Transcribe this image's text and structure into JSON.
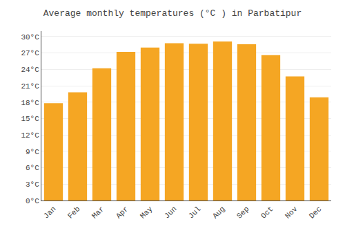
{
  "chart_data": {
    "type": "bar",
    "title": "Average monthly temperatures (°C ) in Parbatipur",
    "categories": [
      "Jan",
      "Feb",
      "Mar",
      "Apr",
      "May",
      "Jun",
      "Jul",
      "Aug",
      "Sep",
      "Oct",
      "Nov",
      "Dec"
    ],
    "values": [
      17.8,
      19.8,
      24.2,
      27.2,
      28.0,
      28.8,
      28.7,
      29.1,
      28.6,
      26.6,
      22.7,
      18.9
    ],
    "color": "#F5A623",
    "ylim": [
      0,
      31
    ],
    "yticks": [
      {
        "value": 0,
        "label": "0°C"
      },
      {
        "value": 3,
        "label": "3°C"
      },
      {
        "value": 6,
        "label": "6°C"
      },
      {
        "value": 9,
        "label": "9°C"
      },
      {
        "value": 12,
        "label": "12°C"
      },
      {
        "value": 15,
        "label": "15°C"
      },
      {
        "value": 18,
        "label": "18°C"
      },
      {
        "value": 21,
        "label": "21°C"
      },
      {
        "value": 24,
        "label": "24°C"
      },
      {
        "value": 27,
        "label": "27°C"
      },
      {
        "value": 30,
        "label": "30°C"
      }
    ],
    "grid": true
  }
}
